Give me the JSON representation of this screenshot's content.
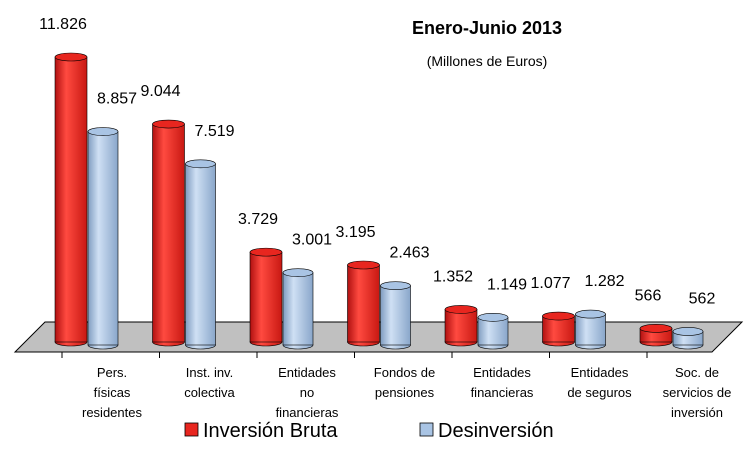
{
  "chart_data": {
    "type": "bar3d",
    "title": "Enero-Junio 2013",
    "subtitle": "(Millones de Euros)",
    "categories": [
      [
        "Pers.",
        "físicas",
        "residentes"
      ],
      [
        "Inst. inv.",
        "colectiva"
      ],
      [
        "Entidades",
        "no",
        "financieras"
      ],
      [
        "Fondos de",
        "pensiones"
      ],
      [
        "Entidades",
        "financieras"
      ],
      [
        "Entidades",
        "de seguros"
      ],
      [
        "Soc. de",
        "servicios de",
        "inversión"
      ]
    ],
    "series": [
      {
        "name": "Inversión Bruta",
        "color": "#e8261f",
        "values": [
          11826,
          9044,
          3729,
          3195,
          1352,
          1077,
          566
        ],
        "value_labels": [
          "11.826",
          "9.044",
          "3.729",
          "3.195",
          "1.352",
          "1.077",
          "566"
        ]
      },
      {
        "name": "Desinversión",
        "color": "#a9c4e4",
        "values": [
          8857,
          7519,
          3001,
          2463,
          1149,
          1282,
          562
        ],
        "value_labels": [
          "8.857",
          "7.519",
          "3.001",
          "2.463",
          "1.149",
          "1.282",
          "562"
        ]
      }
    ],
    "legend": "bottom"
  }
}
